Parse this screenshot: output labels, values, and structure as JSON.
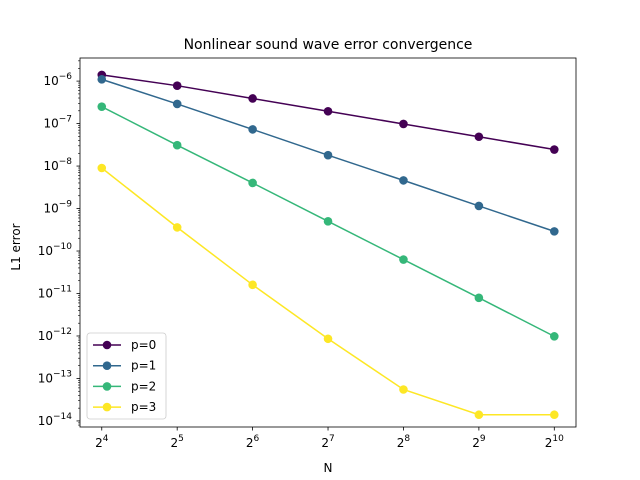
{
  "chart_data": {
    "type": "line",
    "title": "Nonlinear sound wave error convergence",
    "xlabel": "N",
    "ylabel": "L1 error",
    "xscale": "log2",
    "yscale": "log10",
    "x": [
      16,
      32,
      64,
      128,
      256,
      512,
      1024
    ],
    "x_tick_labels": [
      {
        "base": "2",
        "exp": "4"
      },
      {
        "base": "2",
        "exp": "5"
      },
      {
        "base": "2",
        "exp": "6"
      },
      {
        "base": "2",
        "exp": "7"
      },
      {
        "base": "2",
        "exp": "8"
      },
      {
        "base": "2",
        "exp": "9"
      },
      {
        "base": "2",
        "exp": "10"
      }
    ],
    "y_tick_labels": [
      {
        "base": "10",
        "exp": "−6",
        "value": 1e-06
      },
      {
        "base": "10",
        "exp": "−7",
        "value": 1e-07
      },
      {
        "base": "10",
        "exp": "−8",
        "value": 1e-08
      },
      {
        "base": "10",
        "exp": "−9",
        "value": 1e-09
      },
      {
        "base": "10",
        "exp": "−10",
        "value": 1e-10
      },
      {
        "base": "10",
        "exp": "−11",
        "value": 1e-11
      },
      {
        "base": "10",
        "exp": "−12",
        "value": 1e-12
      },
      {
        "base": "10",
        "exp": "−13",
        "value": 1e-13
      },
      {
        "base": "10",
        "exp": "−14",
        "value": 1e-14
      }
    ],
    "xlim": [
      13.1,
      1250
    ],
    "ylim": [
      7.2e-15,
      3.5e-06
    ],
    "grid": false,
    "legend_position": "lower-left",
    "series": [
      {
        "name": "p=0",
        "color": "#440154",
        "values": [
          1.4e-06,
          7.8e-07,
          3.9e-07,
          1.95e-07,
          9.8e-08,
          4.9e-08,
          2.45e-08
        ]
      },
      {
        "name": "p=1",
        "color": "#31688e",
        "values": [
          1.1e-06,
          2.9e-07,
          7.3e-08,
          1.8e-08,
          4.6e-09,
          1.15e-09,
          2.9e-10
        ]
      },
      {
        "name": "p=2",
        "color": "#35b779",
        "values": [
          2.5e-07,
          3.1e-08,
          4e-09,
          5e-10,
          6.3e-11,
          7.9e-12,
          9.8e-13
        ]
      },
      {
        "name": "p=3",
        "color": "#fde725",
        "values": [
          9e-09,
          3.6e-10,
          1.6e-11,
          8.6e-13,
          5.5e-14,
          1.4e-14,
          1.4e-14
        ]
      }
    ]
  }
}
